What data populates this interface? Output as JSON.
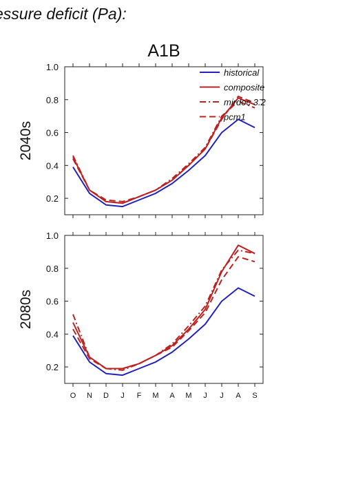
{
  "heading": "essure deficit (Pa):",
  "colors": {
    "historical": "#2222bb",
    "projection": "#bb2222"
  },
  "chart_data": [
    {
      "type": "line",
      "title": "A1B",
      "ylabel": "2040s",
      "categories": [
        "O",
        "N",
        "D",
        "J",
        "F",
        "M",
        "A",
        "M",
        "J",
        "J",
        "A",
        "S"
      ],
      "ylim": [
        0.1,
        1.0
      ],
      "yticks": [
        "0.2",
        "0.4",
        "0.6",
        "0.8",
        "1.0"
      ],
      "show_xticklabels": false,
      "legend_position": "top-right",
      "series": [
        {
          "name": "historical",
          "color": "#2222bb",
          "dash": "solid",
          "values": [
            0.39,
            0.23,
            0.16,
            0.15,
            0.19,
            0.23,
            0.29,
            0.37,
            0.46,
            0.6,
            0.68,
            0.63
          ]
        },
        {
          "name": "composite",
          "color": "#bb2222",
          "dash": "solid",
          "values": [
            0.45,
            0.25,
            0.18,
            0.17,
            0.21,
            0.25,
            0.31,
            0.4,
            0.5,
            0.69,
            0.81,
            0.77
          ]
        },
        {
          "name": "mirdoc 3.2",
          "color": "#bb2222",
          "dash": "dashdot",
          "values": [
            0.46,
            0.25,
            0.18,
            0.17,
            0.21,
            0.25,
            0.32,
            0.41,
            0.51,
            0.7,
            0.79,
            0.75
          ]
        },
        {
          "name": "pcm1",
          "color": "#bb2222",
          "dash": "dash",
          "values": [
            0.44,
            0.25,
            0.19,
            0.18,
            0.21,
            0.25,
            0.31,
            0.4,
            0.5,
            0.68,
            0.82,
            0.78
          ]
        }
      ]
    },
    {
      "type": "line",
      "title": "",
      "ylabel": "2080s",
      "categories": [
        "O",
        "N",
        "D",
        "J",
        "F",
        "M",
        "A",
        "M",
        "J",
        "J",
        "A",
        "S"
      ],
      "ylim": [
        0.1,
        1.0
      ],
      "yticks": [
        "0.2",
        "0.4",
        "0.6",
        "0.8",
        "1.0"
      ],
      "show_xticklabels": true,
      "series": [
        {
          "name": "historical",
          "color": "#2222bb",
          "dash": "solid",
          "values": [
            0.39,
            0.23,
            0.16,
            0.15,
            0.19,
            0.23,
            0.29,
            0.37,
            0.46,
            0.6,
            0.68,
            0.63
          ]
        },
        {
          "name": "composite",
          "color": "#bb2222",
          "dash": "solid",
          "values": [
            0.47,
            0.26,
            0.19,
            0.19,
            0.22,
            0.27,
            0.33,
            0.43,
            0.55,
            0.78,
            0.94,
            0.89
          ]
        },
        {
          "name": "mirdoc 3.2",
          "color": "#bb2222",
          "dash": "dashdot",
          "values": [
            0.52,
            0.26,
            0.19,
            0.18,
            0.22,
            0.27,
            0.34,
            0.45,
            0.57,
            0.79,
            0.91,
            0.89
          ]
        },
        {
          "name": "pcm1",
          "color": "#bb2222",
          "dash": "dash",
          "values": [
            0.43,
            0.25,
            0.19,
            0.19,
            0.22,
            0.27,
            0.32,
            0.42,
            0.53,
            0.73,
            0.87,
            0.84
          ]
        }
      ]
    }
  ]
}
